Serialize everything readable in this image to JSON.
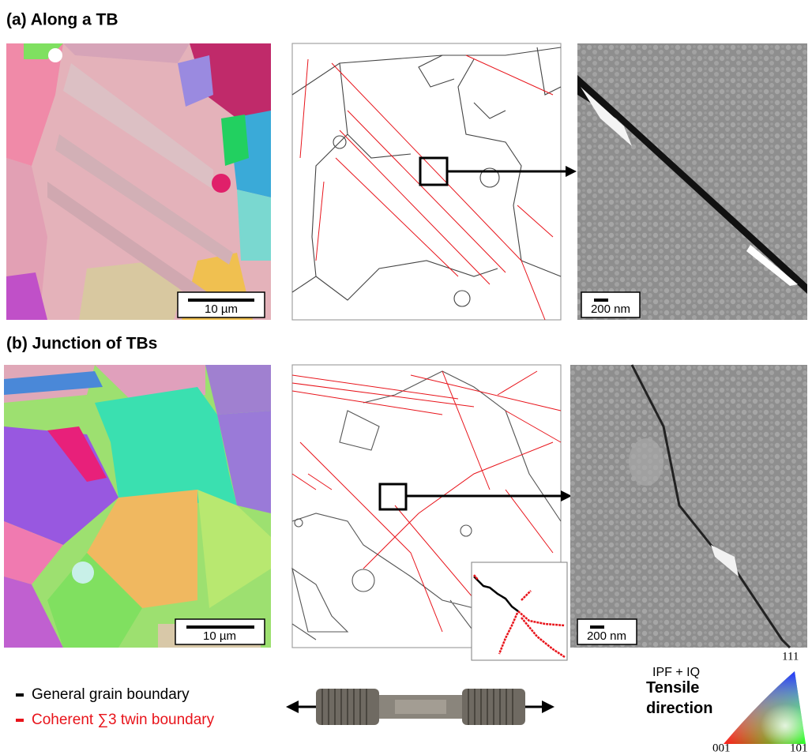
{
  "panels": {
    "a": {
      "label": "(a) Along a TB",
      "ebsd_scale": "10 µm",
      "tem_scale": "200 nm"
    },
    "b": {
      "label": "(b) Junction of TBs",
      "ebsd_scale": "10 µm",
      "tem_scale": "200 nm"
    }
  },
  "legend": {
    "items": [
      {
        "label": "General grain boundary",
        "color": "#000000"
      },
      {
        "label": "Coherent ∑3 twin boundary",
        "color": "#e8141b"
      }
    ]
  },
  "ipf": {
    "label": "IPF + IQ",
    "title": "Tensile direction",
    "corners": [
      "111",
      "001",
      "101"
    ]
  }
}
